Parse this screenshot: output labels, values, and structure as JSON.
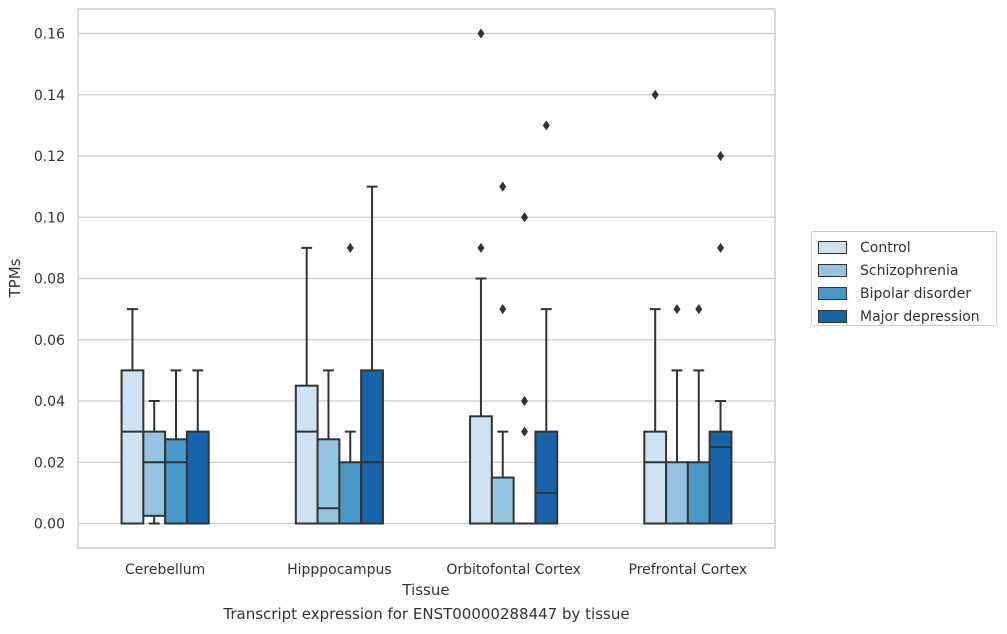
{
  "chart_data": {
    "type": "boxplot",
    "title": "Transcript expression for ENST00000288447 by tissue",
    "xlabel": "Tissue",
    "ylabel": "TPMs",
    "ylim": [
      -0.008,
      0.168
    ],
    "yticks": [
      0.0,
      0.02,
      0.04,
      0.06,
      0.08,
      0.1,
      0.12,
      0.14,
      0.16
    ],
    "ytick_labels": [
      "0.00",
      "0.02",
      "0.04",
      "0.06",
      "0.08",
      "0.10",
      "0.12",
      "0.14",
      "0.16"
    ],
    "categories": [
      "Cerebellum",
      "Hipppocampus",
      "Orbitofontal Cortex",
      "Prefrontal Cortex"
    ],
    "grid": true,
    "legend_position": "right",
    "series": [
      {
        "name": "Control",
        "color": "#d0e1f2",
        "boxes": [
          {
            "whislo": 0.0,
            "q1": 0.0,
            "med": 0.03,
            "q3": 0.05,
            "whishi": 0.07,
            "fliers": []
          },
          {
            "whislo": 0.0,
            "q1": 0.0,
            "med": 0.03,
            "q3": 0.045,
            "whishi": 0.09,
            "fliers": []
          },
          {
            "whislo": 0.0,
            "q1": 0.0,
            "med": 0.0,
            "q3": 0.035,
            "whishi": 0.08,
            "fliers": [
              0.09,
              0.16
            ]
          },
          {
            "whislo": 0.0,
            "q1": 0.0,
            "med": 0.02,
            "q3": 0.03,
            "whishi": 0.07,
            "fliers": [
              0.14
            ]
          }
        ]
      },
      {
        "name": "Schizophrenia",
        "color": "#94c4df",
        "boxes": [
          {
            "whislo": 0.0,
            "q1": 0.0025,
            "med": 0.02,
            "q3": 0.03,
            "whishi": 0.04,
            "fliers": []
          },
          {
            "whislo": 0.0,
            "q1": 0.0,
            "med": 0.005,
            "q3": 0.0275,
            "whishi": 0.05,
            "fliers": []
          },
          {
            "whislo": 0.0,
            "q1": 0.0,
            "med": 0.0,
            "q3": 0.015,
            "whishi": 0.03,
            "fliers": [
              0.07,
              0.11
            ]
          },
          {
            "whislo": 0.0,
            "q1": 0.0,
            "med": 0.0,
            "q3": 0.02,
            "whishi": 0.05,
            "fliers": [
              0.07
            ]
          }
        ]
      },
      {
        "name": "Bipolar disorder",
        "color": "#4a98c9",
        "boxes": [
          {
            "whislo": 0.0,
            "q1": 0.0,
            "med": 0.02,
            "q3": 0.0275,
            "whishi": 0.05,
            "fliers": []
          },
          {
            "whislo": 0.0,
            "q1": 0.0,
            "med": 0.0,
            "q3": 0.02,
            "whishi": 0.03,
            "fliers": [
              0.09
            ]
          },
          {
            "whislo": 0.0,
            "q1": 0.0,
            "med": 0.0,
            "q3": 0.0,
            "whishi": 0.0,
            "fliers": [
              0.03,
              0.04,
              0.1
            ]
          },
          {
            "whislo": 0.0,
            "q1": 0.0,
            "med": 0.0,
            "q3": 0.02,
            "whishi": 0.05,
            "fliers": [
              0.07
            ]
          }
        ]
      },
      {
        "name": "Major depression",
        "color": "#1764ab",
        "boxes": [
          {
            "whislo": 0.0,
            "q1": 0.0,
            "med": 0.0,
            "q3": 0.03,
            "whishi": 0.05,
            "fliers": []
          },
          {
            "whislo": 0.0,
            "q1": 0.0,
            "med": 0.02,
            "q3": 0.05,
            "whishi": 0.11,
            "fliers": []
          },
          {
            "whislo": 0.0,
            "q1": 0.0,
            "med": 0.01,
            "q3": 0.03,
            "whishi": 0.07,
            "fliers": [
              0.13
            ]
          },
          {
            "whislo": 0.0,
            "q1": 0.0,
            "med": 0.025,
            "q3": 0.03,
            "whishi": 0.04,
            "fliers": [
              0.09,
              0.12
            ]
          }
        ]
      }
    ]
  }
}
